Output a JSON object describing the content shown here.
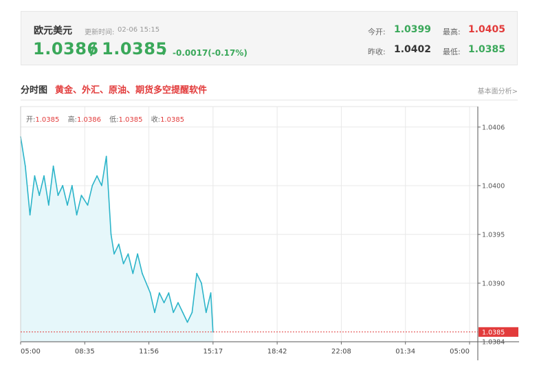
{
  "quote": {
    "pair_name": "欧元美元",
    "update_label": "更新时间:",
    "update_time": "02-06 15:15",
    "bid": "1.0386",
    "slash": "/",
    "ask": "1.0385",
    "change": "-0.0017(-0.17%)",
    "open_label": "今开:",
    "open_value": "1.0399",
    "high_label": "最高:",
    "high_value": "1.0405",
    "prev_close_label": "昨收:",
    "prev_close_value": "1.0402",
    "low_label": "最低:",
    "low_value": "1.0385"
  },
  "section": {
    "title": "分时图",
    "promo": "黄金、外汇、原油、期货多空提醒软件",
    "fund_link": "基本面分析>"
  },
  "ohlc": {
    "open_label": "开:",
    "open_value": "1.0385",
    "high_label": "高:",
    "high_value": "1.0386",
    "low_label": "低:",
    "low_value": "1.0385",
    "close_label": "收:",
    "close_value": "1.0385"
  },
  "colors": {
    "line": "#2bb4c9",
    "fill": "#e6f7fa",
    "green": "#3aa85a",
    "red": "#e23b3b",
    "grid": "#e8e8e8"
  },
  "chart_data": {
    "type": "area",
    "ylim": [
      1.0384,
      1.04081
    ],
    "yticks": [
      "1.0406",
      "1.0400",
      "1.0395",
      "1.0390",
      "1.0384"
    ],
    "xticks": [
      "05:00",
      "08:35",
      "11:56",
      "15:17",
      "18:42",
      "22:08",
      "01:34",
      "05:00"
    ],
    "current_price_label": "1.0385",
    "current_price": 1.0385,
    "x": [
      "05:00",
      "05:15",
      "05:30",
      "05:45",
      "06:00",
      "06:15",
      "06:30",
      "06:45",
      "07:00",
      "07:15",
      "07:30",
      "07:45",
      "08:00",
      "08:15",
      "08:35",
      "08:50",
      "09:05",
      "09:20",
      "09:35",
      "09:50",
      "10:00",
      "10:15",
      "10:30",
      "10:45",
      "11:00",
      "11:15",
      "11:30",
      "11:56",
      "12:10",
      "12:25",
      "12:40",
      "12:55",
      "13:10",
      "13:25",
      "13:40",
      "13:55",
      "14:10",
      "14:25",
      "14:40",
      "14:55",
      "15:10",
      "15:17"
    ],
    "y": [
      1.0405,
      1.0402,
      1.0397,
      1.0401,
      1.0399,
      1.0401,
      1.0398,
      1.0402,
      1.0399,
      1.04,
      1.0398,
      1.04,
      1.0397,
      1.0399,
      1.0398,
      1.04,
      1.0401,
      1.04,
      1.0403,
      1.0395,
      1.0393,
      1.0394,
      1.0392,
      1.0393,
      1.0391,
      1.0393,
      1.0391,
      1.0389,
      1.0387,
      1.0389,
      1.0388,
      1.0389,
      1.0387,
      1.0388,
      1.0387,
      1.0386,
      1.0387,
      1.0391,
      1.039,
      1.0387,
      1.0389,
      1.0385
    ]
  }
}
